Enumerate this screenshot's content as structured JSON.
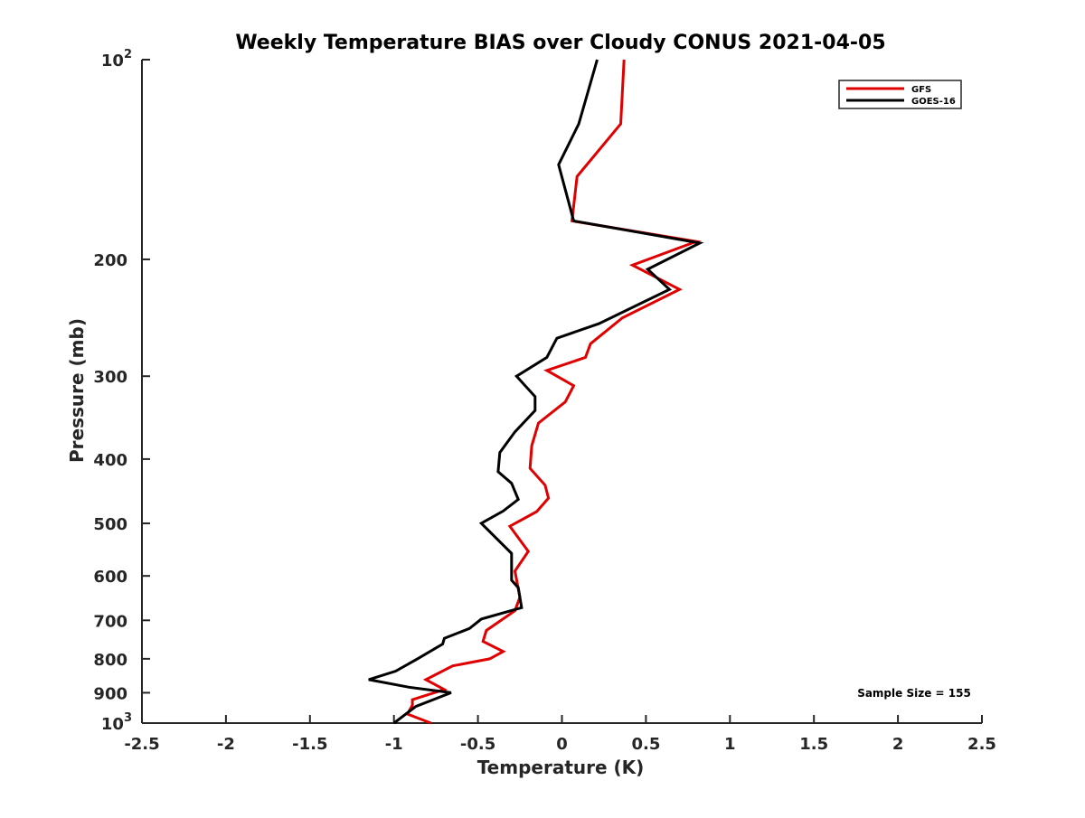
{
  "chart_data": {
    "type": "line",
    "title": "Weekly Temperature BIAS over Cloudy CONUS 2021-04-05",
    "xlabel": "Temperature (K)",
    "ylabel": "Pressure (mb)",
    "xlim": [
      -2.5,
      2.5
    ],
    "ylim": [
      100,
      1000
    ],
    "y_scale": "log",
    "y_reversed": true,
    "grid": false,
    "legend_position": "top-right",
    "x_ticks": [
      {
        "value": -2.5,
        "label": "-2.5"
      },
      {
        "value": -2,
        "label": "-2"
      },
      {
        "value": -1.5,
        "label": "-1.5"
      },
      {
        "value": -1,
        "label": "-1"
      },
      {
        "value": -0.5,
        "label": "-0.5"
      },
      {
        "value": 0,
        "label": "0"
      },
      {
        "value": 0.5,
        "label": "0.5"
      },
      {
        "value": 1,
        "label": "1"
      },
      {
        "value": 1.5,
        "label": "1.5"
      },
      {
        "value": 2,
        "label": "2"
      },
      {
        "value": 2.5,
        "label": "2.5"
      }
    ],
    "y_ticks": [
      {
        "value": 100,
        "base": "10",
        "exp": "2"
      },
      {
        "value": 200,
        "label": "200"
      },
      {
        "value": 300,
        "label": "300"
      },
      {
        "value": 400,
        "label": "400"
      },
      {
        "value": 500,
        "label": "500"
      },
      {
        "value": 600,
        "label": "600"
      },
      {
        "value": 700,
        "label": "700"
      },
      {
        "value": 800,
        "label": "800"
      },
      {
        "value": 900,
        "label": "900"
      },
      {
        "value": 1000,
        "base": "10",
        "exp": "3"
      }
    ],
    "annotation": "Sample Size = 155",
    "series": [
      {
        "name": "GFS",
        "color": "#e00000",
        "points": [
          [
            0.37,
            100
          ],
          [
            0.35,
            125
          ],
          [
            0.09,
            150
          ],
          [
            0.06,
            175
          ],
          [
            0.8,
            188
          ],
          [
            0.42,
            204
          ],
          [
            0.7,
            222
          ],
          [
            0.36,
            245
          ],
          [
            0.17,
            268
          ],
          [
            0.14,
            281
          ],
          [
            -0.09,
            294
          ],
          [
            0.07,
            310
          ],
          [
            0.02,
            328
          ],
          [
            -0.14,
            353
          ],
          [
            -0.18,
            382
          ],
          [
            -0.19,
            413
          ],
          [
            -0.1,
            438
          ],
          [
            -0.08,
            458
          ],
          [
            -0.15,
            480
          ],
          [
            -0.31,
            505
          ],
          [
            -0.2,
            551
          ],
          [
            -0.28,
            590
          ],
          [
            -0.25,
            646
          ],
          [
            -0.28,
            677
          ],
          [
            -0.45,
            725
          ],
          [
            -0.47,
            753
          ],
          [
            -0.35,
            780
          ],
          [
            -0.43,
            800
          ],
          [
            -0.65,
            820
          ],
          [
            -0.81,
            860
          ],
          [
            -0.7,
            890
          ],
          [
            -0.89,
            922
          ],
          [
            -0.89,
            940
          ],
          [
            -0.92,
            969
          ],
          [
            -0.78,
            1000
          ]
        ]
      },
      {
        "name": "GOES-16",
        "color": "#000000",
        "points": [
          [
            0.21,
            100
          ],
          [
            0.1,
            125
          ],
          [
            -0.02,
            144
          ],
          [
            0.07,
            175
          ],
          [
            0.82,
            189
          ],
          [
            0.51,
            207
          ],
          [
            0.64,
            222
          ],
          [
            0.22,
            250
          ],
          [
            -0.03,
            263
          ],
          [
            -0.09,
            281
          ],
          [
            -0.27,
            300
          ],
          [
            -0.16,
            322
          ],
          [
            -0.16,
            338
          ],
          [
            -0.28,
            364
          ],
          [
            -0.37,
            391
          ],
          [
            -0.38,
            418
          ],
          [
            -0.3,
            435
          ],
          [
            -0.26,
            460
          ],
          [
            -0.35,
            479
          ],
          [
            -0.48,
            500
          ],
          [
            -0.3,
            555
          ],
          [
            -0.3,
            578
          ],
          [
            -0.3,
            609
          ],
          [
            -0.26,
            625
          ],
          [
            -0.24,
            670
          ],
          [
            -0.48,
            697
          ],
          [
            -0.55,
            720
          ],
          [
            -0.7,
            745
          ],
          [
            -0.71,
            760
          ],
          [
            -0.86,
            800
          ],
          [
            -0.99,
            835
          ],
          [
            -1.15,
            860
          ],
          [
            -0.91,
            883
          ],
          [
            -0.66,
            900
          ],
          [
            -0.87,
            944
          ],
          [
            -1.0,
            1000
          ]
        ]
      }
    ]
  }
}
